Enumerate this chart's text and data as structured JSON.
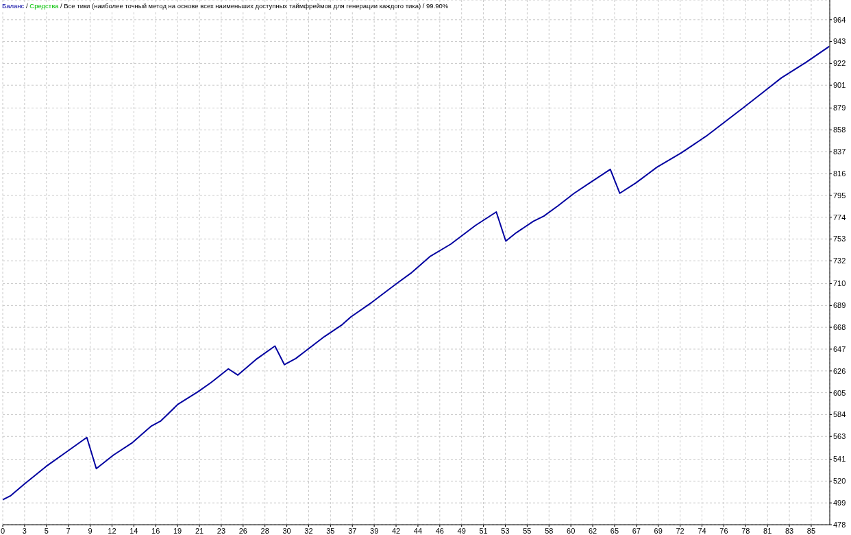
{
  "chart_data": {
    "type": "line",
    "title": "Все тики (наиболее точный метод на основе всех наименьших доступных таймфреймов для генерации каждого тика) / 99.90%",
    "annotations": [
      "/",
      "/"
    ],
    "x": [
      0.25,
      1.1,
      2.5,
      4.8,
      7.1,
      9.1,
      10.1,
      11.9,
      13.9,
      15.9,
      16.9,
      18.7,
      20.8,
      22.2,
      24,
      25,
      26.9,
      28.9,
      29.9,
      31.1,
      32.1,
      34.1,
      35.9,
      36.9,
      39.1,
      41.7,
      43.2,
      45.2,
      47.4,
      50,
      52.2,
      53.2,
      54.3,
      56.1,
      57.2,
      58.7,
      60.4,
      62.2,
      64.2,
      65.2,
      66.9,
      69.1,
      71.7,
      74.3,
      78.3,
      80.4,
      82.2,
      84.8,
      87.2
    ],
    "series": [
      {
        "name": "Баланс",
        "color": "#0000a0",
        "values": [
          502,
          506,
          517,
          534,
          549,
          562,
          532,
          545,
          557,
          573,
          578,
          594,
          606,
          615,
          628,
          622,
          637,
          650,
          632,
          638,
          645,
          659,
          670,
          678,
          692,
          710,
          720,
          736,
          748,
          766,
          779,
          751,
          759,
          770,
          775,
          785,
          797,
          808,
          820,
          797,
          807,
          822,
          836,
          852,
          880,
          895,
          908,
          923,
          938
        ]
      },
      {
        "name": "Средства",
        "color": "#00c000",
        "values": [
          null,
          null,
          null,
          null,
          null,
          null,
          null,
          null,
          null,
          null,
          null,
          null,
          null,
          null,
          null,
          null,
          null,
          null,
          null,
          null,
          null,
          null,
          null,
          null,
          null,
          null,
          null,
          null,
          null,
          null,
          null,
          null,
          null,
          null,
          null,
          null,
          null,
          null,
          null,
          null,
          null,
          null,
          null,
          null,
          null,
          null,
          null,
          null,
          null
        ]
      }
    ],
    "xlim": [
      0.25,
      87.3
    ],
    "ylim": [
      478,
      983
    ],
    "xticks": [
      {
        "value": 0.25,
        "label": "0"
      },
      {
        "value": 2.55,
        "label": "3"
      },
      {
        "value": 4.85,
        "label": "5"
      },
      {
        "value": 7.15,
        "label": "7"
      },
      {
        "value": 9.45,
        "label": "9"
      },
      {
        "value": 11.75,
        "label": "12"
      },
      {
        "value": 14.05,
        "label": "14"
      },
      {
        "value": 16.35,
        "label": "16"
      },
      {
        "value": 18.65,
        "label": "19"
      },
      {
        "value": 20.95,
        "label": "21"
      },
      {
        "value": 23.25,
        "label": "23"
      },
      {
        "value": 25.55,
        "label": "26"
      },
      {
        "value": 27.85,
        "label": "28"
      },
      {
        "value": 30.15,
        "label": "30"
      },
      {
        "value": 32.45,
        "label": "32"
      },
      {
        "value": 34.75,
        "label": "35"
      },
      {
        "value": 37.05,
        "label": "37"
      },
      {
        "value": 39.35,
        "label": "39"
      },
      {
        "value": 41.65,
        "label": "42"
      },
      {
        "value": 43.95,
        "label": "44"
      },
      {
        "value": 46.25,
        "label": "46"
      },
      {
        "value": 48.55,
        "label": "49"
      },
      {
        "value": 50.85,
        "label": "51"
      },
      {
        "value": 53.15,
        "label": "53"
      },
      {
        "value": 55.45,
        "label": "55"
      },
      {
        "value": 57.75,
        "label": "58"
      },
      {
        "value": 60.05,
        "label": "60"
      },
      {
        "value": 62.35,
        "label": "62"
      },
      {
        "value": 64.65,
        "label": "65"
      },
      {
        "value": 66.95,
        "label": "67"
      },
      {
        "value": 69.25,
        "label": "69"
      },
      {
        "value": 71.55,
        "label": "72"
      },
      {
        "value": 73.85,
        "label": "74"
      },
      {
        "value": 76.15,
        "label": "76"
      },
      {
        "value": 78.45,
        "label": "78"
      },
      {
        "value": 80.75,
        "label": "81"
      },
      {
        "value": 83.05,
        "label": "83"
      },
      {
        "value": 85.35,
        "label": "85"
      }
    ],
    "yticks": [
      478,
      499,
      520,
      541,
      563,
      584,
      605,
      626,
      647,
      668,
      689,
      710,
      732,
      753,
      774,
      795,
      816,
      837,
      858,
      879,
      901,
      922,
      943,
      964
    ],
    "grid": true,
    "legend": "top left"
  }
}
